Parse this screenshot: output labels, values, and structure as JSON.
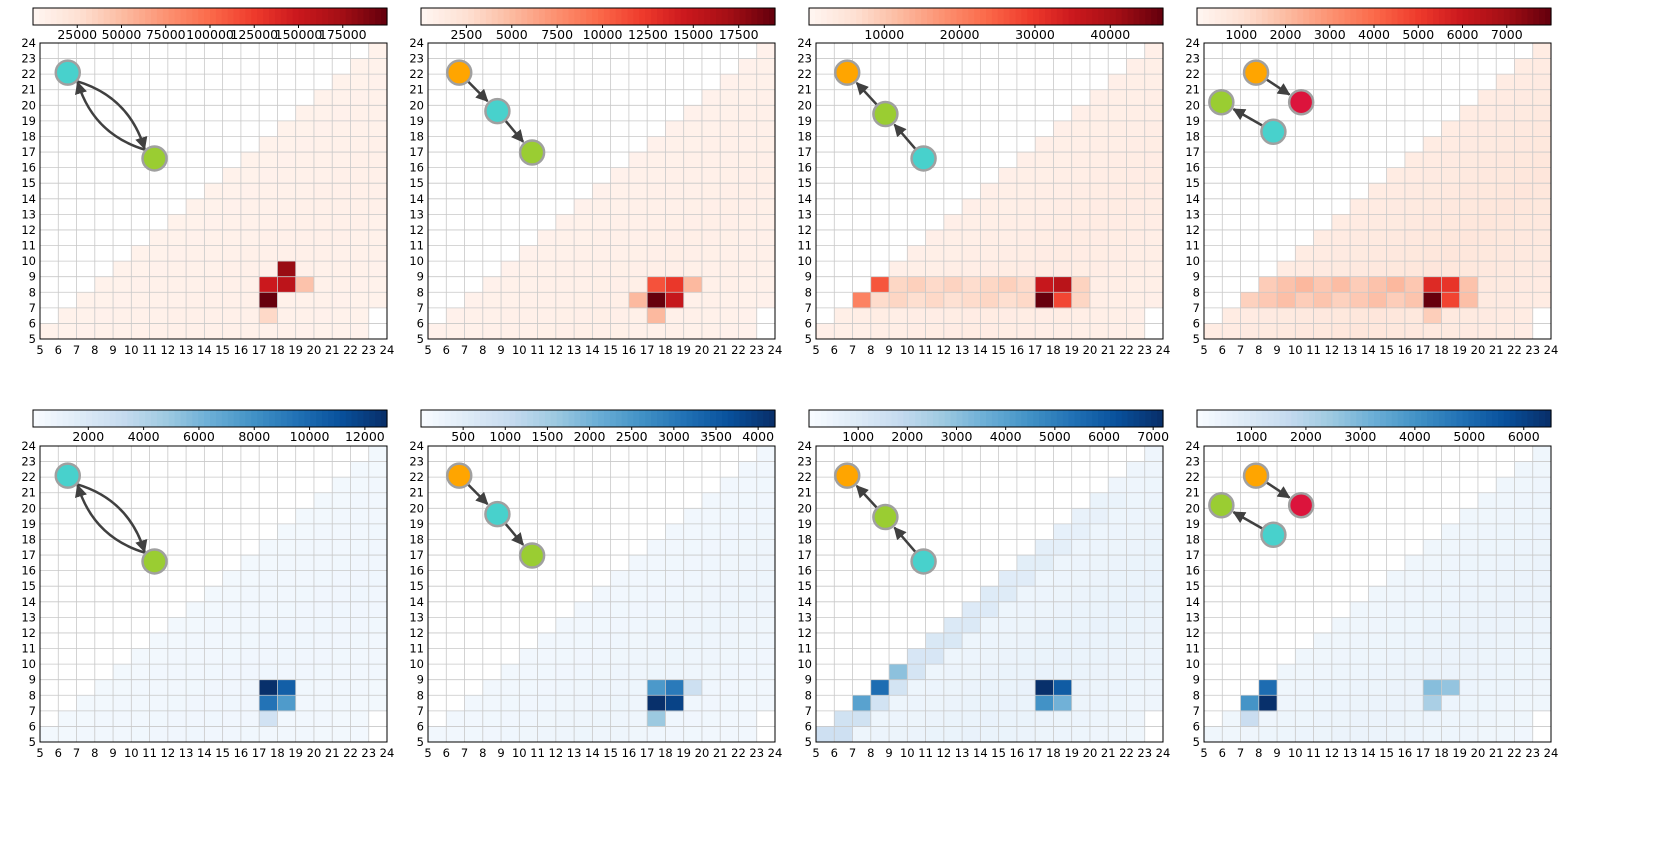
{
  "colors": {
    "reds": [
      "#fff5f0",
      "#fee0d2",
      "#fcbba1",
      "#fc9272",
      "#fb6a4a",
      "#ef3b2c",
      "#cb181d",
      "#a50f15",
      "#67000d"
    ],
    "blues": [
      "#f7fbff",
      "#deebf7",
      "#c6dbef",
      "#9ecae1",
      "#6baed6",
      "#4292c6",
      "#2171b5",
      "#08519c",
      "#08306b"
    ],
    "grid": "#c8c8c8",
    "node_cyan": "#48d1cc",
    "node_green": "#9acd32",
    "node_orange": "#ffa500",
    "node_crimson": "#dc143c",
    "node_outline": "#a0a0a0",
    "arrow": "#404040"
  },
  "chart_data": [
    {
      "type": "heatmap",
      "cmap": "reds",
      "motif": "A",
      "xlim": [
        5,
        24
      ],
      "ylim": [
        5,
        24
      ],
      "colorbar": {
        "min": 0,
        "max": 200000,
        "ticks": [
          "25000",
          "50000",
          "75000",
          "100000",
          "125000",
          "150000",
          "175000"
        ],
        "tick_values": [
          25000,
          50000,
          75000,
          100000,
          125000,
          150000,
          175000
        ]
      },
      "peaks": [
        {
          "x": 17,
          "y": 7,
          "v": 200000
        },
        {
          "x": 18,
          "y": 8,
          "v": 160000
        },
        {
          "x": 18,
          "y": 9,
          "v": 180000
        },
        {
          "x": 17,
          "y": 8,
          "v": 150000
        },
        {
          "x": 19,
          "y": 8,
          "v": 45000
        },
        {
          "x": 17,
          "y": 6,
          "v": 30000
        }
      ],
      "base": 6000
    },
    {
      "type": "heatmap",
      "cmap": "reds",
      "motif": "B",
      "xlim": [
        5,
        24
      ],
      "ylim": [
        5,
        24
      ],
      "colorbar": {
        "min": 0,
        "max": 19500,
        "ticks": [
          "2500",
          "5000",
          "7500",
          "10000",
          "12500",
          "15000",
          "17500"
        ],
        "tick_values": [
          2500,
          5000,
          7500,
          10000,
          12500,
          15000,
          17500
        ]
      },
      "peaks": [
        {
          "x": 17,
          "y": 7,
          "v": 19500
        },
        {
          "x": 18,
          "y": 7,
          "v": 15000
        },
        {
          "x": 17,
          "y": 8,
          "v": 11000
        },
        {
          "x": 18,
          "y": 8,
          "v": 12500
        },
        {
          "x": 16,
          "y": 7,
          "v": 5000
        },
        {
          "x": 19,
          "y": 8,
          "v": 5000
        },
        {
          "x": 17,
          "y": 6,
          "v": 5000
        }
      ],
      "base": 700
    },
    {
      "type": "heatmap",
      "cmap": "reds",
      "motif": "C",
      "xlim": [
        5,
        24
      ],
      "ylim": [
        5,
        24
      ],
      "colorbar": {
        "min": 0,
        "max": 47000,
        "ticks": [
          "10000",
          "20000",
          "30000",
          "40000"
        ],
        "tick_values": [
          10000,
          20000,
          30000,
          40000
        ]
      },
      "peaks": [
        {
          "x": 17,
          "y": 7,
          "v": 47000
        },
        {
          "x": 17,
          "y": 8,
          "v": 36000
        },
        {
          "x": 18,
          "y": 8,
          "v": 38000
        },
        {
          "x": 18,
          "y": 7,
          "v": 28000
        },
        {
          "x": 8,
          "y": 8,
          "v": 26000
        },
        {
          "x": 7,
          "y": 7,
          "v": 20000
        },
        {
          "x": 19,
          "y": 8,
          "v": 8000
        }
      ],
      "band": [
        {
          "y": 7,
          "v": 8000
        },
        {
          "y": 8,
          "v": 9000
        },
        {
          "y": 6,
          "v": 2500
        }
      ],
      "base": 2500
    },
    {
      "type": "heatmap",
      "cmap": "reds",
      "motif": "D",
      "xlim": [
        5,
        24
      ],
      "ylim": [
        5,
        24
      ],
      "colorbar": {
        "min": 0,
        "max": 8000,
        "ticks": [
          "1000",
          "2000",
          "3000",
          "4000",
          "5000",
          "6000",
          "7000"
        ],
        "tick_values": [
          1000,
          2000,
          3000,
          4000,
          5000,
          6000,
          7000
        ]
      },
      "peaks": [
        {
          "x": 17,
          "y": 7,
          "v": 8000
        },
        {
          "x": 17,
          "y": 8,
          "v": 5500
        },
        {
          "x": 18,
          "y": 8,
          "v": 5200
        },
        {
          "x": 18,
          "y": 7,
          "v": 4800
        },
        {
          "x": 17,
          "y": 6,
          "v": 1500
        }
      ],
      "band": [
        {
          "y": 7,
          "v": 2000
        },
        {
          "y": 8,
          "v": 2200
        }
      ],
      "base": 700
    },
    {
      "type": "heatmap",
      "cmap": "blues",
      "motif": "A",
      "xlim": [
        5,
        24
      ],
      "ylim": [
        5,
        24
      ],
      "colorbar": {
        "min": 0,
        "max": 12800,
        "ticks": [
          "2000",
          "4000",
          "6000",
          "8000",
          "10000",
          "12000"
        ],
        "tick_values": [
          2000,
          4000,
          6000,
          8000,
          10000,
          12000
        ]
      },
      "peaks": [
        {
          "x": 17,
          "y": 8,
          "v": 12800
        },
        {
          "x": 18,
          "y": 8,
          "v": 10500
        },
        {
          "x": 17,
          "y": 7,
          "v": 9500
        },
        {
          "x": 18,
          "y": 7,
          "v": 7500
        },
        {
          "x": 17,
          "y": 6,
          "v": 2500
        }
      ],
      "base": 500
    },
    {
      "type": "heatmap",
      "cmap": "blues",
      "motif": "B",
      "xlim": [
        5,
        24
      ],
      "ylim": [
        5,
        24
      ],
      "colorbar": {
        "min": 0,
        "max": 4200,
        "ticks": [
          "500",
          "1000",
          "1500",
          "2000",
          "2500",
          "3000",
          "3500",
          "4000"
        ],
        "tick_values": [
          500,
          1000,
          1500,
          2000,
          2500,
          3000,
          3500,
          4000
        ]
      },
      "peaks": [
        {
          "x": 17,
          "y": 7,
          "v": 4200
        },
        {
          "x": 18,
          "y": 7,
          "v": 3900
        },
        {
          "x": 17,
          "y": 8,
          "v": 2500
        },
        {
          "x": 18,
          "y": 8,
          "v": 3000
        },
        {
          "x": 17,
          "y": 6,
          "v": 1600
        },
        {
          "x": 19,
          "y": 8,
          "v": 900
        }
      ],
      "base": 200
    },
    {
      "type": "heatmap",
      "cmap": "blues",
      "motif": "C",
      "xlim": [
        5,
        24
      ],
      "ylim": [
        5,
        24
      ],
      "colorbar": {
        "min": 0,
        "max": 7200,
        "ticks": [
          "1000",
          "2000",
          "3000",
          "4000",
          "5000",
          "6000",
          "7000"
        ],
        "tick_values": [
          1000,
          2000,
          3000,
          4000,
          5000,
          6000,
          7000
        ]
      },
      "peaks": [
        {
          "x": 17,
          "y": 8,
          "v": 7200
        },
        {
          "x": 18,
          "y": 8,
          "v": 6000
        },
        {
          "x": 17,
          "y": 7,
          "v": 4500
        },
        {
          "x": 18,
          "y": 7,
          "v": 3500
        },
        {
          "x": 8,
          "y": 8,
          "v": 5500
        },
        {
          "x": 7,
          "y": 7,
          "v": 4000
        },
        {
          "x": 9,
          "y": 9,
          "v": 3000
        }
      ],
      "diag": 1500,
      "base": 500
    },
    {
      "type": "heatmap",
      "cmap": "blues",
      "motif": "D",
      "xlim": [
        5,
        24
      ],
      "ylim": [
        5,
        24
      ],
      "colorbar": {
        "min": 0,
        "max": 6500,
        "ticks": [
          "1000",
          "2000",
          "3000",
          "4000",
          "5000",
          "6000"
        ],
        "tick_values": [
          1000,
          2000,
          3000,
          4000,
          5000,
          6000
        ]
      },
      "peaks": [
        {
          "x": 8,
          "y": 7,
          "v": 6500
        },
        {
          "x": 8,
          "y": 8,
          "v": 5000
        },
        {
          "x": 7,
          "y": 7,
          "v": 4000
        },
        {
          "x": 17,
          "y": 8,
          "v": 2800
        },
        {
          "x": 18,
          "y": 8,
          "v": 2600
        },
        {
          "x": 17,
          "y": 7,
          "v": 2200
        },
        {
          "x": 7,
          "y": 6,
          "v": 1500
        }
      ],
      "base": 400
    }
  ],
  "axis_ticks": [
    "5",
    "6",
    "7",
    "8",
    "9",
    "10",
    "11",
    "12",
    "13",
    "14",
    "15",
    "16",
    "17",
    "18",
    "19",
    "20",
    "21",
    "22",
    "23",
    "24"
  ]
}
